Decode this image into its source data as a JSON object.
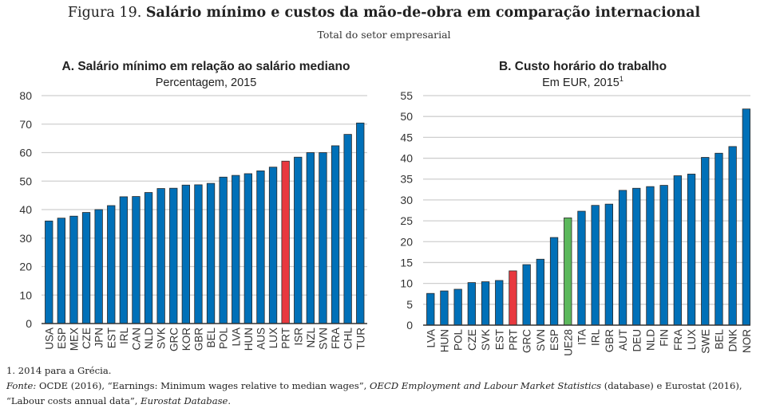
{
  "figure": {
    "number": "Figura 19.",
    "title": "Salário mínimo e custos da mão-de-obra em comparação internacional",
    "subtitle": "Total do setor empresarial"
  },
  "colors": {
    "bar_default": "#0070b8",
    "bar_highlight_portugal": "#e8393f",
    "bar_highlight_eu": "#5cb85c",
    "bar_outline": "#2a2a2a",
    "grid": "#cfcfcf",
    "axis": "#333333"
  },
  "chart_data": [
    {
      "id": "A",
      "type": "bar",
      "title": "A. Salário mínimo em relação ao salário mediano",
      "subtitle": "Percentagem, 2015",
      "xlabel": "",
      "ylabel": "",
      "ylim": [
        0,
        80
      ],
      "yticks": [
        0,
        10,
        20,
        30,
        40,
        50,
        60,
        70,
        80
      ],
      "grid": true,
      "categories": [
        "USA",
        "ESP",
        "MEX",
        "CZE",
        "JPN",
        "EST",
        "IRL",
        "CAN",
        "NLD",
        "SVK",
        "GRC",
        "KOR",
        "GBR",
        "BEL",
        "POL",
        "LVA",
        "HUN",
        "AUS",
        "LUX",
        "PRT",
        "ISR",
        "NZL",
        "SVN",
        "FRA",
        "CHL",
        "TUR"
      ],
      "values": [
        36,
        37,
        37.7,
        39,
        40,
        41.4,
        44.5,
        44.6,
        46,
        47.4,
        47.5,
        48.6,
        48.7,
        49.2,
        51.4,
        52,
        52.6,
        53.6,
        54.9,
        57,
        58.4,
        60,
        60,
        62.4,
        66.4,
        70.4
      ],
      "highlight": {
        "PRT": "bar_highlight_portugal"
      }
    },
    {
      "id": "B",
      "type": "bar",
      "title": "B. Custo horário do trabalho",
      "subtitle": "Em EUR, 2015",
      "subtitle_sup": "1",
      "xlabel": "",
      "ylabel": "",
      "ylim": [
        0,
        55
      ],
      "yticks": [
        0,
        5,
        10,
        15,
        20,
        25,
        30,
        35,
        40,
        45,
        50,
        55
      ],
      "grid": true,
      "categories": [
        "LVA",
        "HUN",
        "POL",
        "CZE",
        "SVK",
        "EST",
        "PRT",
        "GRC",
        "SVN",
        "ESP",
        "UE28",
        "ITA",
        "IRL",
        "GBR",
        "AUT",
        "DEU",
        "NLD",
        "FIN",
        "FRA",
        "LUX",
        "SWE",
        "BEL",
        "DNK",
        "NOR"
      ],
      "values": [
        7.6,
        8.2,
        8.6,
        10.2,
        10.4,
        10.7,
        13,
        14.5,
        15.8,
        21,
        25.7,
        27.3,
        28.7,
        29,
        32.3,
        32.8,
        33.2,
        33.5,
        35.8,
        36.2,
        40.2,
        41.2,
        42.8,
        51.8
      ],
      "highlight": {
        "PRT": "bar_highlight_portugal",
        "UE28": "bar_highlight_eu"
      }
    }
  ],
  "notes": {
    "footnote": "1.  2014 para a Grécia.",
    "source_label": "Fonte:",
    "source_part1": " OCDE (2016), “Earnings: Minimum wages relative to median wages”, ",
    "source_italic1": "OECD Employment and Labour Market Statistics",
    "source_part2": " (database) e Eurostat (2016), “Labour costs annual data”, ",
    "source_italic2": "Eurostat Database",
    "source_end": "."
  }
}
